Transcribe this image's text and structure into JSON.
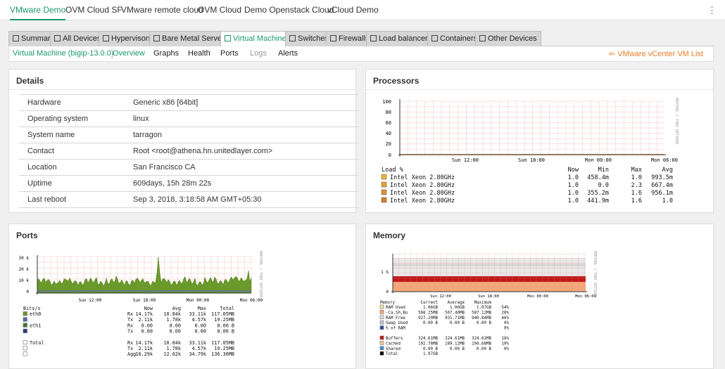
{
  "top_tabs": [
    {
      "label": "VMware Demo",
      "active": true
    },
    {
      "label": "OVM Cloud SF"
    },
    {
      "label": "VMware remote cloud"
    },
    {
      "label": "OVM Cloud"
    },
    {
      "label": "Demo Openstack Cloud"
    },
    {
      "label": "vCloud Demo"
    }
  ],
  "kebab_icon": "kebab-menu-icon",
  "device_tabs": [
    {
      "label": "Summary",
      "icon": "summary-icon"
    },
    {
      "label": "All Devices",
      "icon": "all-devices-icon"
    },
    {
      "label": "Hypervisors",
      "icon": "hypervisors-icon"
    },
    {
      "label": "Bare Metal Servers",
      "icon": "server-icon"
    },
    {
      "label": "Virtual Machines",
      "icon": "vm-icon",
      "active": true
    },
    {
      "label": "Switches",
      "icon": "switch-icon"
    },
    {
      "label": "Firewalls",
      "icon": "firewall-icon"
    },
    {
      "label": "Load balancers",
      "icon": "load-balancer-icon"
    },
    {
      "label": "Containers",
      "icon": "container-icon"
    },
    {
      "label": "Other Devices",
      "icon": "other-devices-icon"
    }
  ],
  "subnav": {
    "vm_name": "Virtual Machine (bigip-13.0.0)",
    "items": [
      "Overview",
      "Graphs",
      "Health",
      "Ports",
      "Logs",
      "Alerts"
    ],
    "back_link": "VMware vCenter VM List"
  },
  "details": {
    "title": "Details",
    "rows": [
      {
        "k": "Hardware",
        "v": "Generic x86 [64bit]"
      },
      {
        "k": "Operating system",
        "v": "linux"
      },
      {
        "k": "System name",
        "v": "tarragon"
      },
      {
        "k": "Contact",
        "v": "Root <root@athena.hn.unitedlayer.com>"
      },
      {
        "k": "Location",
        "v": "San Francisco CA"
      },
      {
        "k": "Uptime",
        "v": "609days, 15h 28m 22s"
      },
      {
        "k": "Last reboot",
        "v": "Sep 3, 2018, 3:18:58 AM GMT+05:30"
      }
    ]
  },
  "processors": {
    "title": "Processors",
    "side_label": "RRDTOOL / TOBI OETIKER",
    "y_ticks": [
      "100",
      "80",
      "60",
      "40",
      "20",
      "0"
    ],
    "x_ticks": [
      "Sun 12:00",
      "Sun 18:00",
      "Mon 00:00",
      "Mon 06:00"
    ],
    "legend_header": [
      "Load %",
      "Now",
      "Min",
      "Max",
      "Avg"
    ],
    "rows": [
      {
        "name": "Intel Xeon 2.80GHz",
        "now": "1.0",
        "min": "458.4m",
        "max": "1.0",
        "avg": "993.5m",
        "color": "#e8b43c"
      },
      {
        "name": "Intel Xeon 2.80GHz",
        "now": "1.0",
        "min": "0.0",
        "max": "2.3",
        "avg": "667.4m",
        "color": "#e8a030"
      },
      {
        "name": "Intel Xeon 2.80GHz",
        "now": "1.0",
        "min": "355.2m",
        "max": "1.6",
        "avg": "956.1m",
        "color": "#e09030"
      },
      {
        "name": "Intel Xeon 2.80GHz",
        "now": "1.0",
        "min": "441.9m",
        "max": "1.6",
        "avg": "1.0",
        "color": "#d88030"
      }
    ]
  },
  "ports": {
    "title": "Ports",
    "side_label": "RRDTOOL / TOBI OETIKER",
    "y_ticks": [
      "30 k",
      "20 k",
      "10 k",
      "0"
    ],
    "x_ticks": [
      "Sun 12:00",
      "Sun 18:00",
      "Mon 00:00",
      "Mon 06:00"
    ],
    "header": [
      "Bits/s",
      "Now",
      "Avg",
      "Max",
      "Total"
    ],
    "rows": [
      {
        "name": "eth0",
        "dir": "Rx",
        "now": "14.17k",
        "avg": "10.84k",
        "max": "33.11k",
        "total": "117.05MB",
        "color": "#6a9a2a"
      },
      {
        "name": "",
        "dir": "Tx",
        "now": "2.11k",
        "avg": "1.78k",
        "max": "4.57k",
        "total": "19.25MB",
        "color": "#5a6ab0"
      },
      {
        "name": "eth1",
        "dir": "Rx",
        "now": "0.00",
        "avg": "0.00",
        "max": "0.00",
        "total": "0.00 B",
        "color": "#3a7a2a"
      },
      {
        "name": "",
        "dir": "Tx",
        "now": "0.00",
        "avg": "0.00",
        "max": "0.00",
        "total": "0.00 B",
        "color": "#2a3a80"
      },
      {
        "name": "Total",
        "dir": "Rx",
        "now": "14.17k",
        "avg": "10.84k",
        "max": "33.11k",
        "total": "117.05MB",
        "color": "#ffffff"
      },
      {
        "name": "",
        "dir": "Tx",
        "now": "2.11k",
        "avg": "1.78k",
        "max": "4.57k",
        "total": "19.25MB",
        "color": "#ffffff"
      },
      {
        "name": "",
        "dir": "Agg",
        "now": "16.29k",
        "avg": "12.62k",
        "max": "34.79k",
        "total": "136.30MB",
        "color": "#ffffff"
      }
    ]
  },
  "memory": {
    "title": "Memory",
    "side_label": "RRDTOOL / TOBI OETIKER",
    "y_ticks": [
      "1 G",
      "0"
    ],
    "x_ticks": [
      "Sun 12:00",
      "Sun 18:00",
      "Mon 00:00",
      "Mon 06:00"
    ],
    "header": [
      "Memory",
      "Current",
      "Average",
      "Maximum",
      ""
    ],
    "rows": [
      {
        "name": "RAM Used",
        "cur": "1.06GB",
        "avg": "1.06GB",
        "max": "1.07GB",
        "pct": "54%",
        "color": "#f0e0a0"
      },
      {
        "name": "-Ca,Sh,Bu",
        "cur": "568.25MB",
        "avg": "567.40MB",
        "max": "587.12MB",
        "pct": "28%",
        "color": "#f4a878"
      },
      {
        "name": "RAM Free",
        "cur": "927.20MB",
        "avg": "931.71MB",
        "max": "940.84MB",
        "pct": "46%",
        "color": "#e0e0e0"
      },
      {
        "name": "Swap Used",
        "cur": "0.00 B",
        "avg": "0.00 B",
        "max": "0.00 B",
        "pct": "0%",
        "color": "#c8c8d8"
      },
      {
        "name": "% of RAM",
        "cur": "",
        "avg": "",
        "max": "",
        "pct": "0%",
        "color": "#3050a0"
      },
      {
        "name": "Buffers",
        "cur": "324.61MB",
        "avg": "324.61MB",
        "max": "324.61MB",
        "pct": "16%",
        "color": "#c01818"
      },
      {
        "name": "Cached",
        "cur": "192.78MB",
        "avg": "189.12MB",
        "max": "194.68MB",
        "pct": "10%",
        "color": "#f8c890"
      },
      {
        "name": "Shared",
        "cur": "0.00 B",
        "avg": "0.00 B",
        "max": "0.00 B",
        "pct": "0%",
        "color": "#4a90d0"
      },
      {
        "name": "Total",
        "cur": "1.97GB",
        "avg": "",
        "max": "",
        "pct": "",
        "color": "#000000"
      }
    ]
  }
}
